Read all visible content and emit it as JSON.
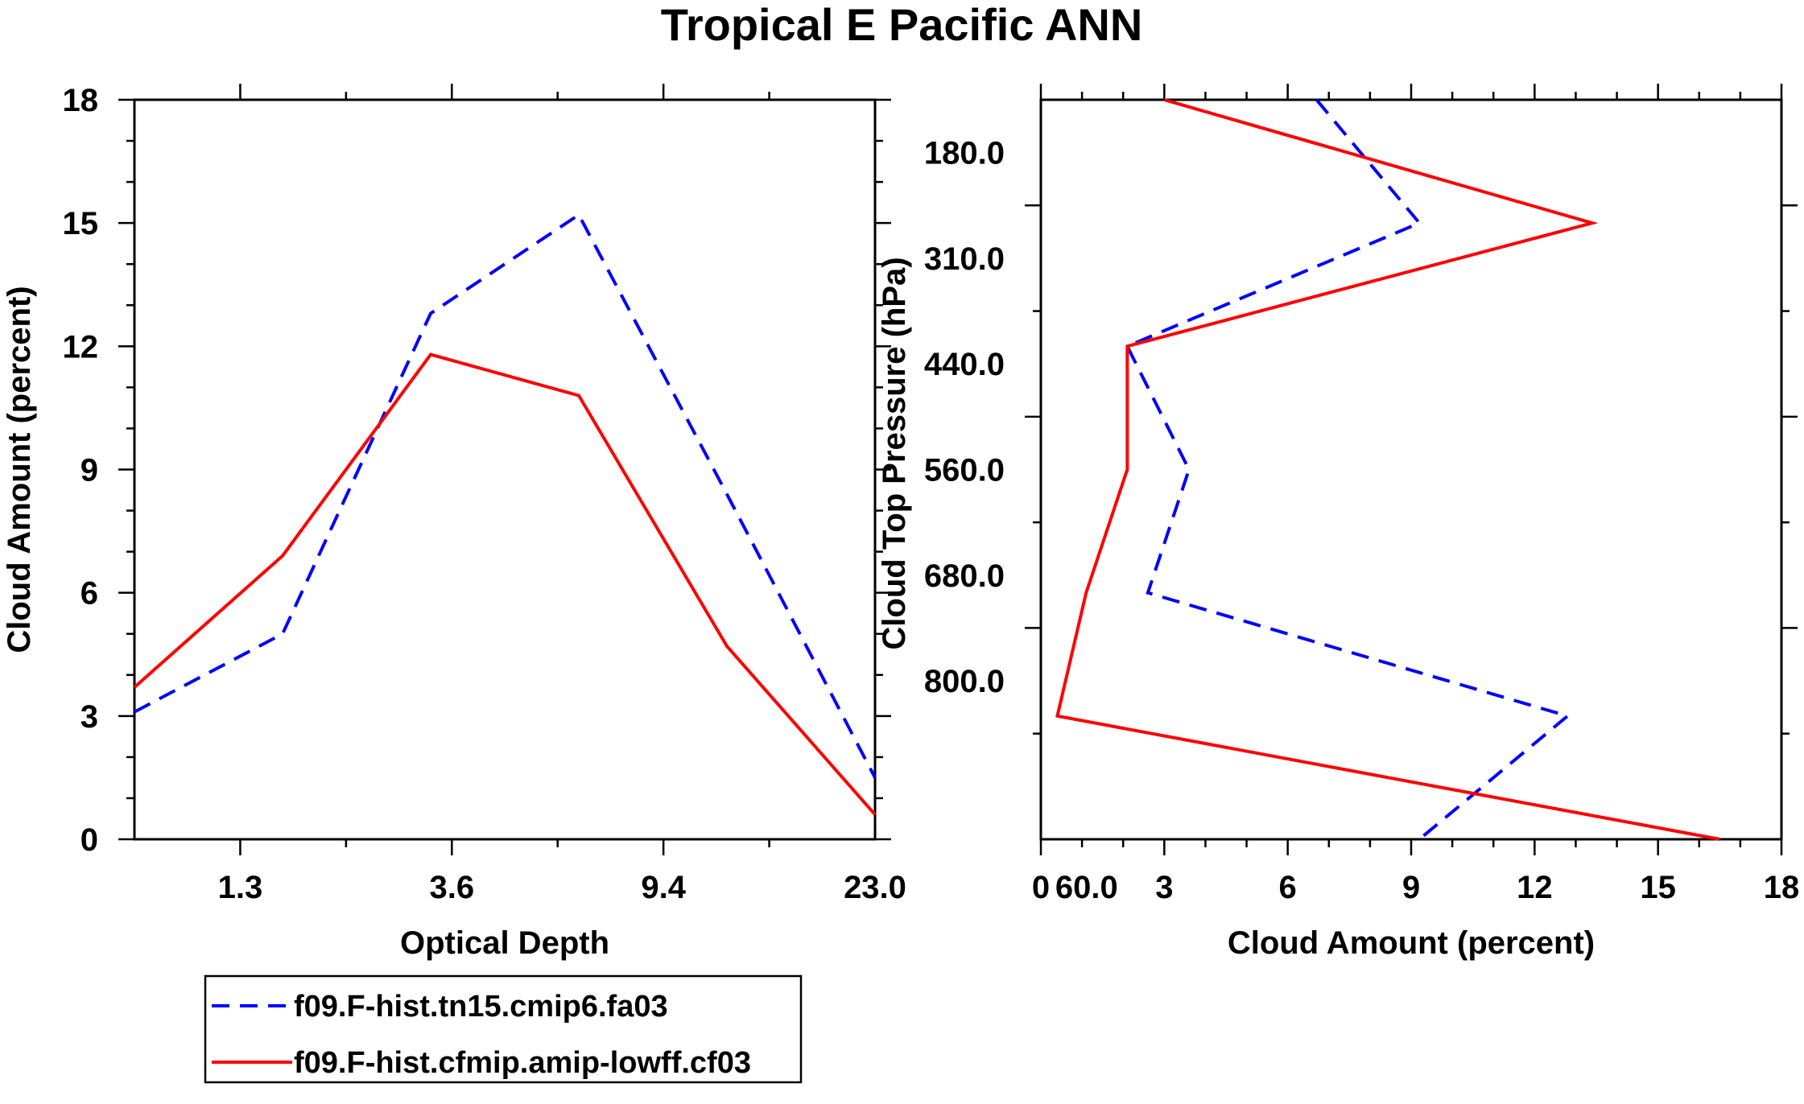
{
  "title": "Tropical E Pacific ANN",
  "colors": {
    "series1": "#0000ff",
    "series2": "#ff0000",
    "axis": "#000000"
  },
  "legend": {
    "placement": "bottom-left",
    "entries": [
      {
        "label": "f09.F-hist.tn15.cmip6.fa03",
        "color": "#0000ff",
        "dash": "dashed"
      },
      {
        "label": "f09.F-hist.cfmip.amip-lowff.cf03",
        "color": "#ff0000",
        "dash": "solid"
      }
    ]
  },
  "chart_data": [
    {
      "type": "line",
      "xlabel": "Optical Depth",
      "ylabel": "Cloud Amount (percent)",
      "ylim": [
        0,
        18
      ],
      "x_tick_labels": [
        "1.3",
        "3.6",
        "9.4",
        "23.0",
        "60.0"
      ],
      "y_tick_labels": [
        "0",
        "3",
        "6",
        "9",
        "12",
        "15",
        "18"
      ],
      "x_bins": 7,
      "series": [
        {
          "name": "f09.F-hist.tn15.cmip6.fa03",
          "values": [
            3.1,
            5.0,
            12.8,
            15.2,
            8.4,
            1.5
          ]
        },
        {
          "name": "f09.F-hist.cfmip.amip-lowff.cf03",
          "values": [
            3.7,
            6.9,
            11.8,
            10.8,
            4.7,
            0.6
          ]
        }
      ]
    },
    {
      "type": "line",
      "xlabel": "Cloud Amount (percent)",
      "ylabel": "Cloud Top Pressure (hPa)",
      "xlim": [
        0,
        18
      ],
      "x_tick_labels": [
        "0",
        "3",
        "6",
        "9",
        "12",
        "15",
        "18"
      ],
      "y_tick_labels": [
        "180.0",
        "310.0",
        "440.0",
        "560.0",
        "680.0",
        "800.0"
      ],
      "y_bins": 7,
      "series": [
        {
          "name": "f09.F-hist.tn15.cmip6.fa03",
          "values": [
            6.7,
            9.2,
            2.1,
            3.6,
            2.6,
            12.8,
            9.2
          ]
        },
        {
          "name": "f09.F-hist.cfmip.amip-lowff.cf03",
          "values": [
            3.0,
            13.4,
            2.1,
            2.1,
            1.1,
            0.4,
            16.5
          ]
        }
      ]
    }
  ]
}
